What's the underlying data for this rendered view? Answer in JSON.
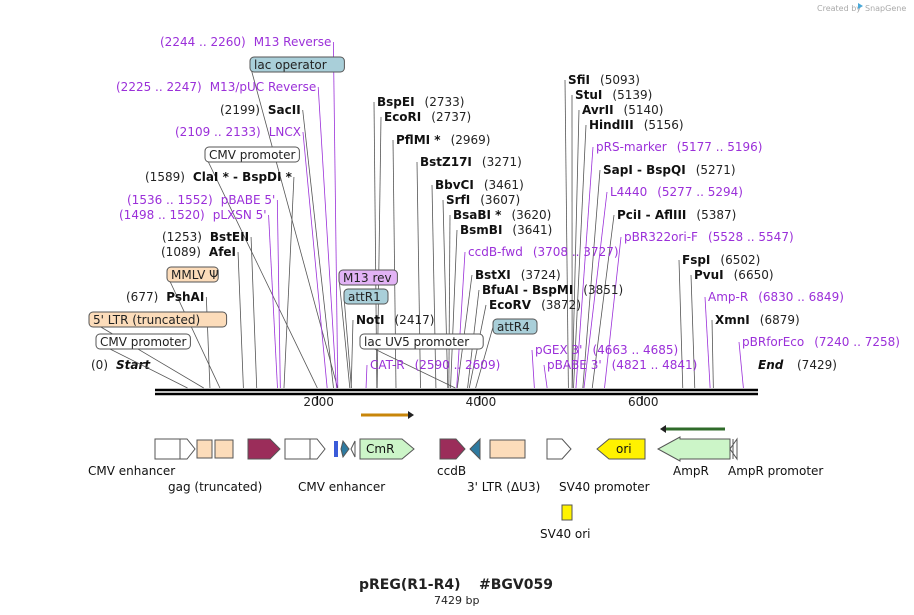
{
  "credit": "Created by",
  "brand": "SnapGene",
  "plasmid": {
    "name": "pREG(R1-R4)",
    "id": "#BGV059",
    "length": 7429,
    "length_label": "7429 bp"
  },
  "colors": {
    "primer": "#9b30d9",
    "promoter_fill": "#ffffff",
    "gag_fill": "#fcdcba",
    "cds_maroon": "#9b2d5a",
    "cmr_fill": "#ccf5c8",
    "ori_fill": "#fff200",
    "attr_fill": "#a9cfd9",
    "m13rev_fill": "#e2b3f5",
    "teal": "#2e7aa0",
    "cat_arrow": "#c8860a",
    "amp_arrow": "#2f6b2a"
  },
  "ruler": {
    "ticks": [
      {
        "label": "2000",
        "bp": 2000
      },
      {
        "label": "4000",
        "bp": 4000
      },
      {
        "label": "6000",
        "bp": 6000
      }
    ]
  },
  "ends": {
    "start": {
      "pos": "(0)",
      "name": "Start"
    },
    "end": {
      "name": "End",
      "pos": "(7429)"
    }
  },
  "left_labels": [
    {
      "bp": 2252,
      "type": "primer",
      "pos": "(2244 .. 2260)",
      "name": "M13 Reverse"
    },
    {
      "bp": 2250,
      "type": "box",
      "name": "lac operator",
      "fill": "#a9cfd9"
    },
    {
      "bp": 2236,
      "type": "primer",
      "pos": "(2225 .. 2247)",
      "name": "M13/pUC Reverse"
    },
    {
      "bp": 2199,
      "type": "enzyme",
      "pos": "(2199)",
      "name": "SacII"
    },
    {
      "bp": 2121,
      "type": "primer",
      "pos": "(2109 .. 2133)",
      "name": "LNCX"
    },
    {
      "bp": 2000,
      "type": "box",
      "name": "CMV promoter",
      "fill": "#ffffff"
    },
    {
      "bp": 1589,
      "type": "enzyme",
      "pos": "(1589)",
      "name": "ClaI * - BspDI *"
    },
    {
      "bp": 1544,
      "type": "primer",
      "pos": "(1536 .. 1552)",
      "name": "pBABE 5'"
    },
    {
      "bp": 1509,
      "type": "primer",
      "pos": "(1498 .. 1520)",
      "name": "pLXSN 5'"
    },
    {
      "bp": 1253,
      "type": "enzyme",
      "pos": "(1253)",
      "name": "BstEII"
    },
    {
      "bp": 1089,
      "type": "enzyme",
      "pos": "(1089)",
      "name": "AfeI"
    },
    {
      "bp": 800,
      "type": "box",
      "name": "MMLV Ψ",
      "fill": "#fcdcba"
    },
    {
      "bp": 677,
      "type": "enzyme",
      "pos": "(677)",
      "name": "PshAI"
    },
    {
      "bp": 600,
      "type": "box",
      "name": "5' LTR (truncated)",
      "fill": "#fcdcba"
    },
    {
      "bp": 400,
      "type": "box",
      "name": "CMV promoter",
      "fill": "#ffffff"
    }
  ],
  "right_labels": [
    {
      "bp": 2733,
      "type": "enzyme",
      "name": "BspEI",
      "pos": "(2733)"
    },
    {
      "bp": 2737,
      "type": "enzyme",
      "name": "EcoRI",
      "pos": "(2737)"
    },
    {
      "bp": 2969,
      "type": "enzyme",
      "name": "PflMI *",
      "pos": "(2969)"
    },
    {
      "bp": 3271,
      "type": "enzyme",
      "name": "BstZ17I",
      "pos": "(3271)"
    },
    {
      "bp": 3461,
      "type": "enzyme",
      "name": "BbvCI",
      "pos": "(3461)"
    },
    {
      "bp": 3607,
      "type": "enzyme",
      "name": "SrfI",
      "pos": "(3607)"
    },
    {
      "bp": 3620,
      "type": "enzyme",
      "name": "BsaBI *",
      "pos": "(3620)"
    },
    {
      "bp": 3641,
      "type": "enzyme",
      "name": "BsmBI",
      "pos": "(3641)"
    },
    {
      "bp": 3717,
      "type": "primer",
      "name": "ccdB-fwd",
      "pos": "(3708 .. 3727)"
    },
    {
      "bp": 3724,
      "type": "enzyme",
      "name": "BstXI",
      "pos": "(3724)"
    },
    {
      "bp": 3851,
      "type": "enzyme",
      "name": "BfuAI - BspMI",
      "pos": "(3851)"
    },
    {
      "bp": 3872,
      "type": "enzyme",
      "name": "EcoRV",
      "pos": "(3872)"
    }
  ],
  "center_labels": [
    {
      "bp": 2400,
      "type": "box",
      "name": "M13 rev",
      "fill": "#e2b3f5"
    },
    {
      "bp": 2420,
      "type": "box",
      "name": "attR1",
      "fill": "#a9cfd9"
    },
    {
      "bp": 2417,
      "type": "enzyme",
      "name": "NotI",
      "pos": "(2417)"
    },
    {
      "bp": 3700,
      "type": "box",
      "name": "lac UV5 promoter",
      "fill": "#ffffff"
    },
    {
      "bp": 2600,
      "type": "primer",
      "name": "CAT-R",
      "pos": "(2590 .. 2609)"
    },
    {
      "bp": 3950,
      "type": "box",
      "name": "attR4",
      "fill": "#a9cfd9"
    }
  ],
  "far_right_labels": [
    {
      "bp": 5093,
      "type": "enzyme",
      "name": "SfiI",
      "pos": "(5093)"
    },
    {
      "bp": 5139,
      "type": "enzyme",
      "name": "StuI",
      "pos": "(5139)"
    },
    {
      "bp": 5140,
      "type": "enzyme",
      "name": "AvrII",
      "pos": "(5140)"
    },
    {
      "bp": 5156,
      "type": "enzyme",
      "name": "HindIII",
      "pos": "(5156)"
    },
    {
      "bp": 5186,
      "type": "primer",
      "name": "pRS-marker",
      "pos": "(5177 .. 5196)"
    },
    {
      "bp": 5271,
      "type": "enzyme",
      "name": "SapI - BspQI",
      "pos": "(5271)"
    },
    {
      "bp": 5285,
      "type": "primer",
      "name": "L4440",
      "pos": "(5277 .. 5294)"
    },
    {
      "bp": 5387,
      "type": "enzyme",
      "name": "PciI - AflIII",
      "pos": "(5387)"
    },
    {
      "bp": 5538,
      "type": "primer",
      "name": "pBR322ori-F",
      "pos": "(5528 .. 5547)"
    },
    {
      "bp": 6502,
      "type": "enzyme",
      "name": "FspI",
      "pos": "(6502)"
    },
    {
      "bp": 6650,
      "type": "enzyme",
      "name": "PvuI",
      "pos": "(6650)"
    },
    {
      "bp": 6839,
      "type": "primer",
      "name": "Amp-R",
      "pos": "(6830 .. 6849)"
    },
    {
      "bp": 6879,
      "type": "enzyme",
      "name": "XmnI",
      "pos": "(6879)"
    },
    {
      "bp": 7249,
      "type": "primer",
      "name": "pBRforEco",
      "pos": "(7240 .. 7258)"
    },
    {
      "bp": 4674,
      "type": "primer",
      "name": "pGEX 3'",
      "pos": "(4663 .. 4685)"
    },
    {
      "bp": 4831,
      "type": "primer",
      "name": "pBABE 3'",
      "pos": "(4821 .. 4841)"
    }
  ],
  "features": [
    {
      "name": "CMV enhancer",
      "label": "CMV enhancer"
    },
    {
      "name": "gag (truncated)",
      "label": "gag (truncated)"
    },
    {
      "name": "CMV enhancer 2",
      "label": "CMV enhancer"
    },
    {
      "name": "CmR",
      "label": "CmR"
    },
    {
      "name": "ccdB",
      "label": "ccdB"
    },
    {
      "name": "3' LTR",
      "label": "3' LTR (ΔU3)"
    },
    {
      "name": "SV40 promoter",
      "label": "SV40 promoter"
    },
    {
      "name": "ori",
      "label": "ori"
    },
    {
      "name": "AmpR",
      "label": "AmpR"
    },
    {
      "name": "AmpR promoter",
      "label": "AmpR promoter"
    },
    {
      "name": "SV40 ori",
      "label": "SV40 ori"
    }
  ]
}
